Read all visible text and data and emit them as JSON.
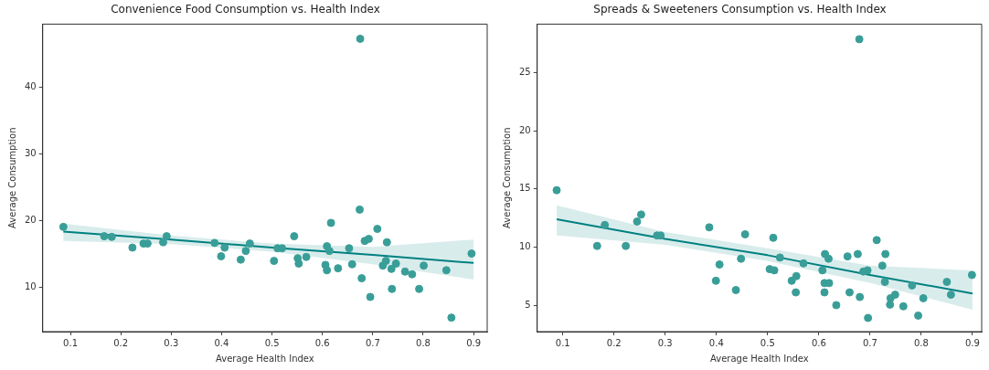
{
  "chart_data": [
    {
      "type": "scatter",
      "title": "Convenience Food Consumption vs. Health Index",
      "xlabel": "Average Health Index",
      "ylabel": "Average Consumption",
      "xlim": [
        0.045,
        0.927
      ],
      "ylim": [
        3.4,
        49.5
      ],
      "xticks": [
        0.1,
        0.2,
        0.3,
        0.4,
        0.5,
        0.6,
        0.7,
        0.8,
        0.9
      ],
      "yticks": [
        10,
        20,
        30,
        40
      ],
      "grid": false,
      "legend": false,
      "series": [
        {
          "marker": "circle",
          "color": "#3a9e98",
          "x": [
            0.086,
            0.167,
            0.182,
            0.223,
            0.245,
            0.253,
            0.284,
            0.291,
            0.386,
            0.399,
            0.406,
            0.438,
            0.448,
            0.456,
            0.504,
            0.511,
            0.52,
            0.544,
            0.551,
            0.553,
            0.568,
            0.606,
            0.609,
            0.609,
            0.617,
            0.614,
            0.631,
            0.653,
            0.659,
            0.674,
            0.678,
            0.684,
            0.692,
            0.695,
            0.709,
            0.72,
            0.726,
            0.728,
            0.737,
            0.738,
            0.746,
            0.764,
            0.778,
            0.792,
            0.801,
            0.846,
            0.856,
            0.896,
            0.675
          ],
          "values": [
            19.1,
            17.7,
            17.6,
            16.0,
            16.6,
            16.6,
            16.8,
            17.7,
            16.7,
            14.7,
            16.0,
            14.2,
            15.5,
            16.6,
            14.0,
            15.9,
            15.9,
            17.7,
            14.4,
            13.6,
            14.6,
            13.4,
            16.2,
            12.6,
            19.7,
            15.5,
            12.9,
            15.9,
            13.5,
            21.7,
            11.4,
            17.0,
            17.3,
            8.6,
            18.8,
            13.3,
            14.0,
            16.8,
            12.8,
            9.8,
            13.6,
            12.4,
            12.0,
            9.8,
            13.3,
            12.6,
            5.5,
            15.1,
            47.3
          ]
        },
        {
          "type": "line",
          "marker": "none",
          "color": "#008080",
          "x": [
            0.086,
            0.3,
            0.5,
            0.7,
            0.9
          ],
          "values": [
            18.4,
            17.2,
            16.0,
            14.9,
            13.7
          ],
          "lower": [
            17.0,
            16.5,
            15.4,
            13.5,
            11.2
          ],
          "upper": [
            19.6,
            17.8,
            16.6,
            16.1,
            17.2
          ]
        }
      ]
    },
    {
      "type": "scatter",
      "title": "Spreads & Sweeteners Consumption vs. Health Index",
      "xlabel": "Average Health Index",
      "ylabel": "Average Consumption",
      "xlim": [
        0.05,
        0.918
      ],
      "ylim": [
        2.72,
        29.2
      ],
      "xticks": [
        0.1,
        0.2,
        0.3,
        0.4,
        0.5,
        0.6,
        0.7,
        0.8,
        0.9
      ],
      "yticks": [
        5,
        10,
        15,
        20,
        25
      ],
      "grid": false,
      "legend": false,
      "series": [
        {
          "marker": "circle",
          "color": "#3a9e98",
          "x": [
            0.088,
            0.167,
            0.182,
            0.223,
            0.245,
            0.253,
            0.284,
            0.291,
            0.386,
            0.399,
            0.406,
            0.438,
            0.448,
            0.456,
            0.504,
            0.511,
            0.513,
            0.524,
            0.547,
            0.556,
            0.555,
            0.57,
            0.607,
            0.612,
            0.619,
            0.611,
            0.62,
            0.611,
            0.634,
            0.656,
            0.66,
            0.676,
            0.68,
            0.687,
            0.695,
            0.696,
            0.713,
            0.724,
            0.73,
            0.729,
            0.74,
            0.739,
            0.749,
            0.765,
            0.782,
            0.794,
            0.804,
            0.85,
            0.858,
            0.899,
            0.679
          ],
          "values": [
            14.9,
            10.1,
            11.9,
            10.1,
            12.2,
            12.8,
            11.0,
            11.0,
            11.7,
            7.1,
            8.5,
            6.3,
            9.0,
            11.1,
            8.1,
            10.8,
            8.0,
            9.1,
            7.1,
            7.5,
            6.1,
            8.6,
            8.0,
            9.4,
            9.0,
            6.9,
            6.9,
            6.1,
            5.0,
            9.2,
            6.1,
            9.4,
            5.7,
            7.9,
            8.0,
            3.9,
            10.6,
            8.4,
            9.4,
            7.0,
            5.6,
            5.05,
            5.9,
            4.9,
            6.7,
            4.1,
            5.6,
            7.0,
            5.9,
            7.6,
            27.9
          ]
        },
        {
          "type": "line",
          "marker": "none",
          "color": "#008080",
          "x": [
            0.088,
            0.3,
            0.5,
            0.7,
            0.9
          ],
          "values": [
            12.4,
            10.7,
            9.3,
            7.6,
            6.0
          ],
          "lower": [
            11.0,
            10.2,
            8.8,
            6.9,
            4.6
          ],
          "upper": [
            13.6,
            11.3,
            9.9,
            8.4,
            8.0
          ]
        }
      ]
    }
  ]
}
